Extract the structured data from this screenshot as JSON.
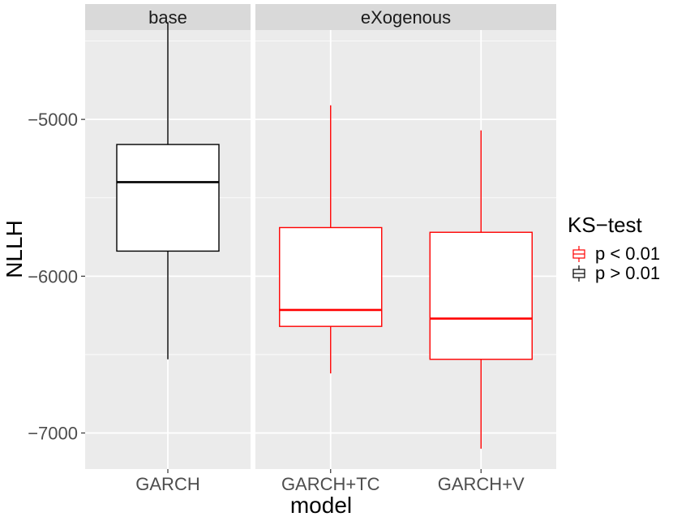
{
  "chart_data": {
    "type": "boxplot",
    "ylabel": "NLLH",
    "xlabel": "model",
    "ylim": [
      -7230,
      -4430
    ],
    "yticks": [
      -5000,
      -6000,
      -7000
    ],
    "ytick_labels": [
      "−5000",
      "−6000",
      "−7000"
    ],
    "grid": true,
    "legend_position": "right",
    "legend": {
      "title": "KS−test",
      "entries": [
        {
          "label": "p < 0.01",
          "color": "#FF0000"
        },
        {
          "label": "p > 0.01",
          "color": "#000000"
        }
      ]
    },
    "panels": [
      {
        "strip": "base",
        "categories": [
          "GARCH"
        ],
        "boxes": [
          {
            "category": "GARCH",
            "min": -6530,
            "q1": -5840,
            "median": -5400,
            "q3": -5160,
            "max": -4380,
            "ks": "p > 0.01"
          }
        ]
      },
      {
        "strip": "eXogenous",
        "categories": [
          "GARCH+TC",
          "GARCH+V"
        ],
        "boxes": [
          {
            "category": "GARCH+TC",
            "min": -6620,
            "q1": -6320,
            "median": -6215,
            "q3": -5690,
            "max": -4910,
            "ks": "p < 0.01"
          },
          {
            "category": "GARCH+V",
            "min": -7100,
            "q1": -6530,
            "median": -6270,
            "q3": -5720,
            "max": -5070,
            "ks": "p < 0.01"
          }
        ]
      }
    ]
  }
}
